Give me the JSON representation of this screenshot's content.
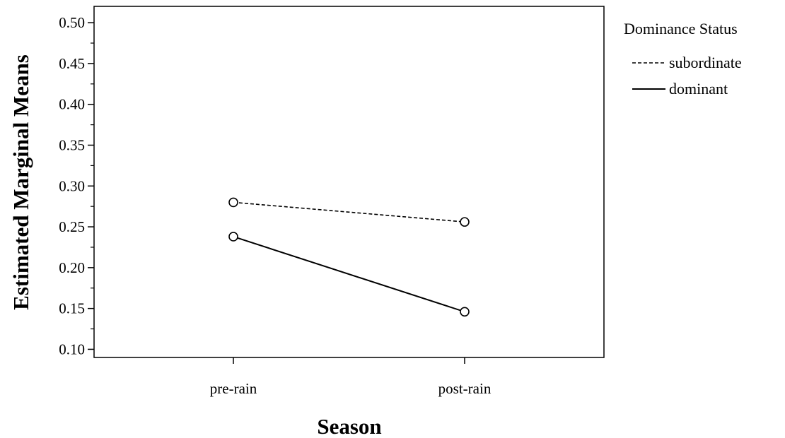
{
  "chart_data": {
    "type": "line",
    "title": "",
    "xlabel": "Season",
    "ylabel": "Estimated Marginal Means",
    "categories": [
      "pre-rain",
      "post-rain"
    ],
    "ylim": [
      0.09,
      0.52
    ],
    "yticks": [
      "0.10",
      "0.15",
      "0.20",
      "0.25",
      "0.30",
      "0.35",
      "0.40",
      "0.45",
      "0.50"
    ],
    "grid": false,
    "legend": {
      "title": "Dominance Status",
      "placement": "right"
    },
    "series": [
      {
        "name": "subordinate",
        "values": [
          0.28,
          0.256
        ],
        "line_style": "dashed",
        "marker": "open-circle",
        "color": "#000000"
      },
      {
        "name": "dominant",
        "values": [
          0.238,
          0.146
        ],
        "line_style": "solid",
        "marker": "open-circle",
        "color": "#000000"
      }
    ]
  }
}
